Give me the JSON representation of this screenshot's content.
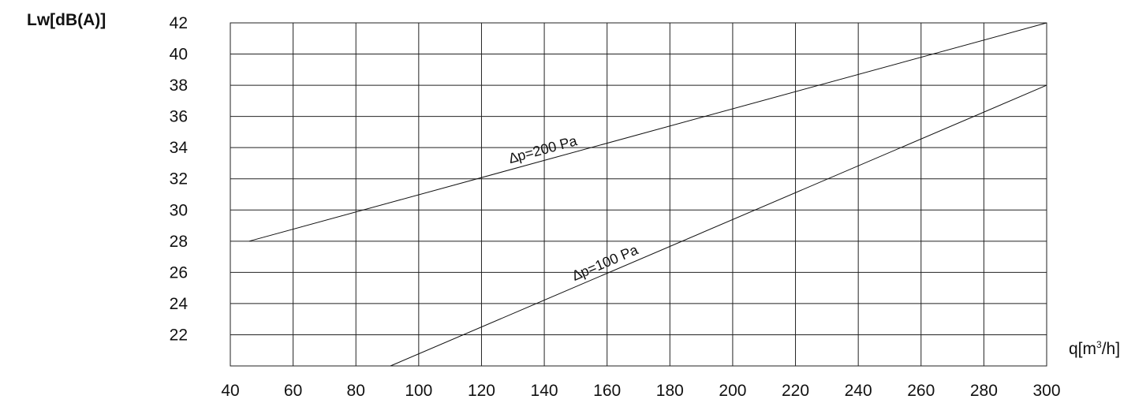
{
  "chart_data": {
    "type": "line",
    "title": "",
    "ylabel": "Lw[dB(A)]",
    "xlabel_prefix": "q[m",
    "xlabel_sup": "3",
    "xlabel_suffix": "/h]",
    "xlim": [
      40,
      300
    ],
    "ylim": [
      20,
      42
    ],
    "xticks": [
      40,
      60,
      80,
      100,
      120,
      140,
      160,
      180,
      200,
      220,
      240,
      260,
      280,
      300
    ],
    "yticks": [
      22,
      24,
      26,
      28,
      30,
      32,
      34,
      36,
      38,
      40,
      42
    ],
    "grid": true,
    "series": [
      {
        "name": "∆p=200 Pa",
        "x": [
          46,
          300
        ],
        "y": [
          28,
          42
        ]
      },
      {
        "name": "∆p=100 Pa",
        "x": [
          91,
          300
        ],
        "y": [
          20,
          38
        ]
      }
    ]
  }
}
